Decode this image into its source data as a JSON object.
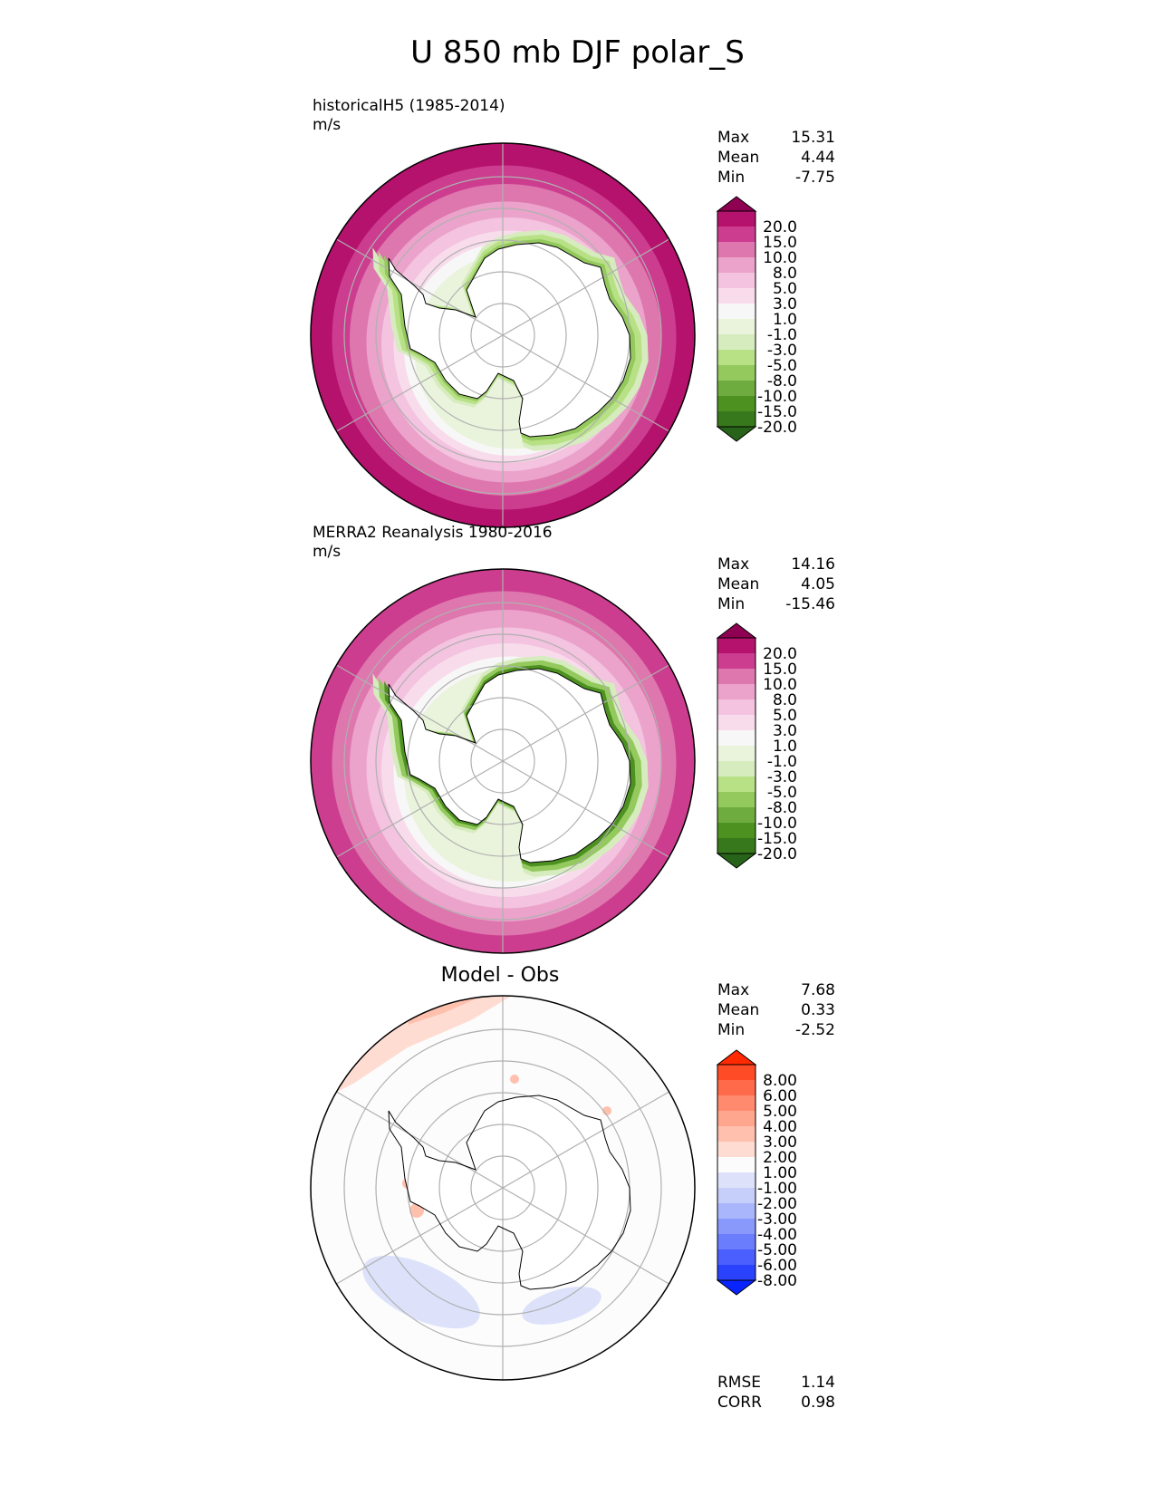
{
  "title": "U 850 mb DJF polar_S",
  "panels": [
    {
      "id": "model",
      "heading": "historicalH5 (1985-2014)",
      "units": "m/s",
      "stats": [
        {
          "label": "Max",
          "value": "15.31"
        },
        {
          "label": "Mean",
          "value": "4.44"
        },
        {
          "label": "Min",
          "value": "-7.75"
        }
      ],
      "ring_levels": [
        "20.0",
        "15.0",
        "10.0",
        "8.0",
        "5.0",
        "3.0",
        "1.0",
        "-1.0"
      ],
      "land_level": "-1.0",
      "coast_levels": [
        "-3.0",
        "-5.0",
        "-8.0"
      ],
      "colorbar_key": "pinkgreen"
    },
    {
      "id": "obs",
      "heading": "MERRA2 Reanalysis 1980-2016",
      "units": "m/s",
      "stats": [
        {
          "label": "Max",
          "value": "14.16"
        },
        {
          "label": "Mean",
          "value": "4.05"
        },
        {
          "label": "Min",
          "value": "-15.46"
        }
      ],
      "ring_levels": [
        "15.0",
        "10.0",
        "8.0",
        "5.0",
        "3.0",
        "1.0",
        "-1.0"
      ],
      "land_level": "-1.0",
      "coast_levels": [
        "-3.0",
        "-8.0",
        "-15.0"
      ],
      "colorbar_key": "pinkgreen"
    },
    {
      "id": "diff",
      "heading": "Model - Obs",
      "units": "",
      "stats": [
        {
          "label": "Max",
          "value": "7.68"
        },
        {
          "label": "Mean",
          "value": "0.33"
        },
        {
          "label": "Min",
          "value": "-2.52"
        }
      ],
      "colorbar_key": "bluered",
      "metrics": [
        {
          "label": "RMSE",
          "value": "1.14"
        },
        {
          "label": "CORR",
          "value": "0.98"
        }
      ]
    }
  ],
  "colorbars": {
    "pinkgreen": {
      "labels": [
        "20.0",
        "15.0",
        "10.0",
        "8.0",
        "5.0",
        "3.0",
        "1.0",
        "-1.0",
        "-3.0",
        "-5.0",
        "-8.0",
        "-10.0",
        "-15.0",
        "-20.0"
      ],
      "colors": [
        "#8e0152",
        "#b4126d",
        "#cc3d8f",
        "#de77ae",
        "#eba3cb",
        "#f3c3df",
        "#f8dcec",
        "#f7f7f7",
        "#eaf4dc",
        "#d6ecbf",
        "#b8e186",
        "#94c95e",
        "#6fac3f",
        "#4d9221",
        "#38781c",
        "#276419"
      ]
    },
    "bluered": {
      "labels": [
        "8.00",
        "6.00",
        "5.00",
        "4.00",
        "3.00",
        "2.00",
        "1.00",
        "-1.00",
        "-2.00",
        "-3.00",
        "-4.00",
        "-5.00",
        "-6.00",
        "-8.00"
      ],
      "colors": [
        "#ff2a00",
        "#ff4b26",
        "#ff6a4a",
        "#ff8a6e",
        "#ffa68f",
        "#ffc0ae",
        "#ffdcd2",
        "#fcfcfc",
        "#dde2fa",
        "#c6cefa",
        "#aab6fb",
        "#8898fb",
        "#6a7dfc",
        "#4a5ffd",
        "#2a42fe",
        "#0a24ff"
      ]
    }
  },
  "colors": {
    "land_outline": "#000000",
    "grid": "#b0b0b0",
    "diff_blue": "#d6dcfa"
  }
}
